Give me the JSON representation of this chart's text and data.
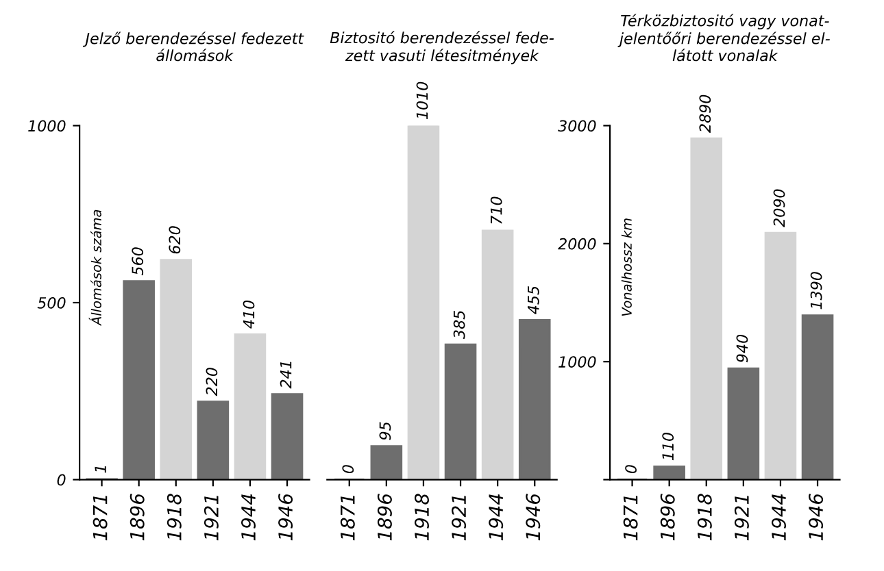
{
  "chart_data": [
    {
      "type": "bar",
      "title": "Jelző berendezéssel fedezett\nállomások",
      "ylabel": "Állomások száma",
      "categories": [
        "1871",
        "1896",
        "1918",
        "1921",
        "1944",
        "1946"
      ],
      "values": [
        1,
        560,
        620,
        220,
        410,
        241
      ],
      "colors": [
        "#6e6e6e",
        "#6e6e6e",
        "#d4d4d4",
        "#6e6e6e",
        "#d4d4d4",
        "#6e6e6e"
      ],
      "ylim": [
        0,
        1000
      ],
      "yticks": [
        0,
        500,
        1000
      ],
      "data_labels": true,
      "grid": false,
      "legend": false
    },
    {
      "type": "bar",
      "title": "Biztositó berendezéssel fede-\nzett vasuti létesitmények",
      "categories": [
        "1871",
        "1896",
        "1918",
        "1921",
        "1944",
        "1946"
      ],
      "values": [
        0,
        95,
        1010,
        385,
        710,
        455
      ],
      "colors": [
        "#6e6e6e",
        "#6e6e6e",
        "#d4d4d4",
        "#6e6e6e",
        "#d4d4d4",
        "#6e6e6e"
      ],
      "ylim": [
        0,
        1010
      ],
      "tick_labels": "x",
      "data_labels": true,
      "grid": false,
      "legend": false
    },
    {
      "type": "bar",
      "title": "Térközbiztositó vagy vonat-\njelentőőri berendezéssel el-\nlátott vonalak",
      "ylabel": "Vonalhossz km",
      "categories": [
        "1871",
        "1896",
        "1918",
        "1921",
        "1944",
        "1946"
      ],
      "values": [
        0,
        110,
        2890,
        940,
        2090,
        1390
      ],
      "colors": [
        "#6e6e6e",
        "#6e6e6e",
        "#d4d4d4",
        "#6e6e6e",
        "#d4d4d4",
        "#6e6e6e"
      ],
      "ylim": [
        0,
        3000
      ],
      "yticks": [
        {
          "value": 0,
          "label": null
        },
        1000,
        2000,
        3000
      ],
      "data_labels": true,
      "grid": false,
      "legend": false
    }
  ]
}
